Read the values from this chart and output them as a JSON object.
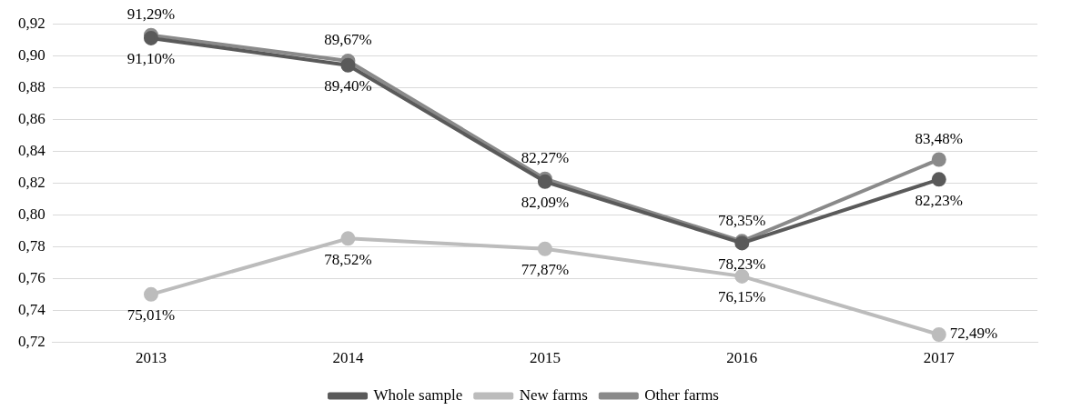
{
  "chart_data": {
    "type": "line",
    "categories": [
      "2013",
      "2014",
      "2015",
      "2016",
      "2017"
    ],
    "series": [
      {
        "name": "Whole sample",
        "color": "#5a5a5a",
        "values": [
          0.911,
          0.894,
          0.8209,
          0.7823,
          0.8223
        ],
        "value_labels": [
          "91,10%",
          "89,40%",
          "82,09%",
          "78,23%",
          "82,23%"
        ]
      },
      {
        "name": "New farms",
        "color": "#bcbcbc",
        "values": [
          0.7501,
          0.7852,
          0.7787,
          0.7615,
          0.7249
        ],
        "value_labels": [
          "75,01%",
          "78,52%",
          "77,87%",
          "76,15%",
          "72,49%"
        ]
      },
      {
        "name": "Other farms",
        "color": "#8a8a8a",
        "values": [
          0.9129,
          0.8967,
          0.8227,
          0.7835,
          0.8348
        ],
        "value_labels": [
          "91,29%",
          "89,67%",
          "82,27%",
          "78,35%",
          "83,48%"
        ]
      }
    ],
    "ylim": [
      0.72,
      0.92
    ],
    "yticks": [
      {
        "value": 0.72,
        "label": "0,72"
      },
      {
        "value": 0.74,
        "label": "0,74"
      },
      {
        "value": 0.76,
        "label": "0,76"
      },
      {
        "value": 0.78,
        "label": "0,78"
      },
      {
        "value": 0.8,
        "label": "0,80"
      },
      {
        "value": 0.82,
        "label": "0,82"
      },
      {
        "value": 0.84,
        "label": "0,84"
      },
      {
        "value": 0.86,
        "label": "0,86"
      },
      {
        "value": 0.88,
        "label": "0,88"
      },
      {
        "value": 0.9,
        "label": "0,90"
      },
      {
        "value": 0.92,
        "label": "0,92"
      }
    ],
    "grid": "y",
    "legend": "bottom",
    "marker": "circle",
    "line_style": "solid"
  }
}
